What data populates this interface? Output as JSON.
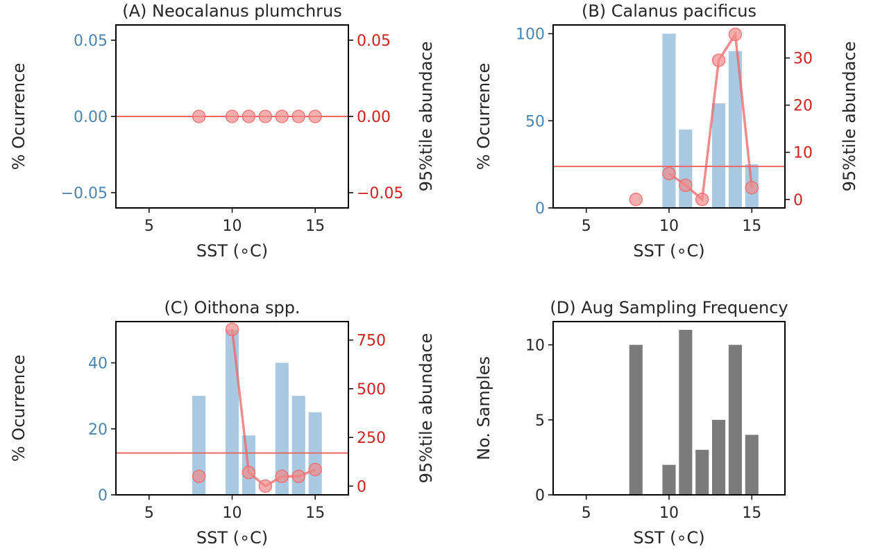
{
  "figure": {
    "colors": {
      "left_axis": "#4c84ad",
      "right_axis": "#cc2222",
      "bar_blue": "#a9c9e2",
      "line_red": "#ee6666",
      "marker_red": "#f28b8b",
      "bar_gray": "#7b7b7b"
    }
  },
  "chart_data": [
    {
      "id": "A",
      "type": "bar",
      "title": "(A) Neocalanus plumchrus",
      "xlabel": "SST (∘C)",
      "ylabel": "% Ocurrence",
      "ylabel_right": "95%tile abundace",
      "xlim": [
        3,
        17
      ],
      "ylim": [
        -0.06,
        0.06
      ],
      "ylim_right": [
        -0.06,
        0.06
      ],
      "xticks": [
        5,
        10,
        15
      ],
      "xtick_labels": [
        "5",
        "10",
        "15"
      ],
      "yticks": [
        -0.05,
        0.0,
        0.05
      ],
      "ytick_labels": [
        "−0.05",
        "0.00",
        "0.05"
      ],
      "yticks_right": [
        -0.05,
        0.0,
        0.05
      ],
      "ytick_labels_right": [
        "−0.05",
        "0.00",
        "0.05"
      ],
      "bars": [],
      "hline_right": 0.0,
      "line": {
        "x": [
          8,
          10,
          11,
          12,
          13,
          14,
          15
        ],
        "y": [
          0,
          0,
          0,
          0,
          0,
          0,
          0
        ],
        "connect": false
      }
    },
    {
      "id": "B",
      "type": "bar",
      "title": "(B) Calanus pacificus",
      "xlabel": "SST (∘C)",
      "ylabel": "% Ocurrence",
      "ylabel_right": "95%tile abundace",
      "xlim": [
        3,
        17
      ],
      "ylim": [
        0,
        105
      ],
      "ylim_right": [
        -1.8,
        37
      ],
      "xticks": [
        5,
        10,
        15
      ],
      "xtick_labels": [
        "5",
        "10",
        "15"
      ],
      "yticks": [
        0,
        50,
        100
      ],
      "ytick_labels": [
        "0",
        "50",
        "100"
      ],
      "yticks_right": [
        0,
        10,
        20,
        30
      ],
      "ytick_labels_right": [
        "0",
        "10",
        "20",
        "30"
      ],
      "bars": [
        {
          "x": 10,
          "value": 100
        },
        {
          "x": 11,
          "value": 45
        },
        {
          "x": 13,
          "value": 60
        },
        {
          "x": 14,
          "value": 90
        },
        {
          "x": 15,
          "value": 25
        }
      ],
      "hline_right": 7,
      "line": {
        "x": [
          8,
          10,
          11,
          12,
          13,
          14,
          15
        ],
        "y": [
          0,
          5.5,
          3,
          0,
          29.5,
          35,
          2.5
        ],
        "connect": true,
        "connect_from": 10
      }
    },
    {
      "id": "C",
      "type": "bar",
      "title": "(C) Oithona spp.",
      "xlabel": "SST (∘C)",
      "ylabel": "% Ocurrence",
      "ylabel_right": "95%tile abundace",
      "xlim": [
        3,
        17
      ],
      "ylim": [
        0,
        52.5
      ],
      "ylim_right": [
        -45,
        845
      ],
      "xticks": [
        5,
        10,
        15
      ],
      "xtick_labels": [
        "5",
        "10",
        "15"
      ],
      "yticks": [
        0,
        20,
        40
      ],
      "ytick_labels": [
        "0",
        "20",
        "40"
      ],
      "yticks_right": [
        0,
        250,
        500,
        750
      ],
      "ytick_labels_right": [
        "0",
        "250",
        "500",
        "750"
      ],
      "bars": [
        {
          "x": 8,
          "value": 30
        },
        {
          "x": 10,
          "value": 50
        },
        {
          "x": 11,
          "value": 18
        },
        {
          "x": 13,
          "value": 40
        },
        {
          "x": 14,
          "value": 30
        },
        {
          "x": 15,
          "value": 25
        }
      ],
      "hline_right": 170,
      "line": {
        "x": [
          8,
          10,
          11,
          12,
          13,
          14,
          15
        ],
        "y": [
          50,
          805,
          70,
          0,
          50,
          50,
          85
        ],
        "connect": true,
        "connect_from": 10
      }
    },
    {
      "id": "D",
      "type": "bar",
      "title": "(D) Aug Sampling Frequency",
      "xlabel": "SST (∘C)",
      "ylabel": "No. Samples",
      "xlim": [
        3,
        17
      ],
      "ylim": [
        0,
        11.55
      ],
      "xticks": [
        5,
        10,
        15
      ],
      "xtick_labels": [
        "5",
        "10",
        "15"
      ],
      "yticks": [
        0,
        5,
        10
      ],
      "ytick_labels": [
        "0",
        "5",
        "10"
      ],
      "bars": [
        {
          "x": 8,
          "value": 10
        },
        {
          "x": 10,
          "value": 2
        },
        {
          "x": 11,
          "value": 11
        },
        {
          "x": 12,
          "value": 3
        },
        {
          "x": 13,
          "value": 5
        },
        {
          "x": 14,
          "value": 10
        },
        {
          "x": 15,
          "value": 4
        }
      ]
    }
  ]
}
